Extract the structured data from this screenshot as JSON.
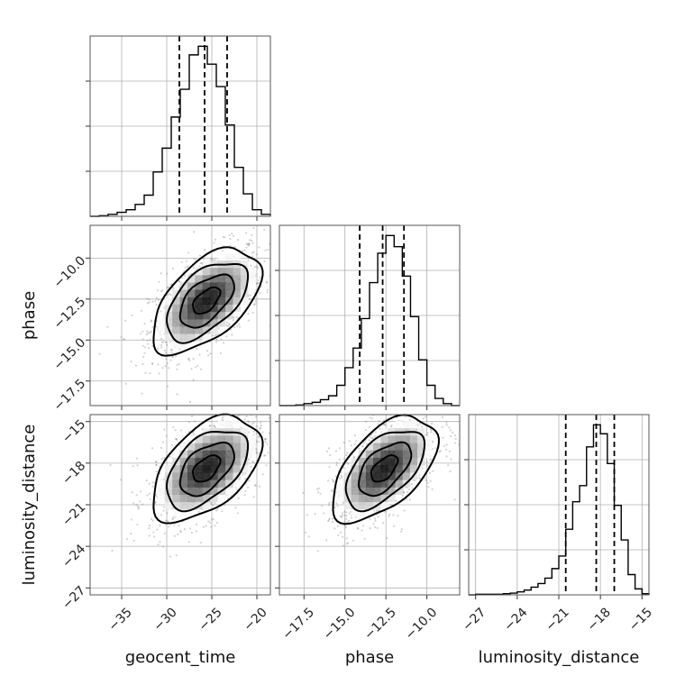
{
  "chart_data": {
    "type": "corner",
    "parameters": [
      "geocent_time",
      "phase",
      "luminosity_distance"
    ],
    "axes": {
      "geocent_time": {
        "range": [
          -38.5,
          -18.5
        ],
        "ticks": [
          -35,
          -30,
          -25,
          -20
        ],
        "tick_labels": [
          "−35",
          "−30",
          "−25",
          "−20"
        ]
      },
      "phase": {
        "range": [
          -19.0,
          -8.0
        ],
        "ticks": [
          -17.5,
          -15.0,
          -12.5,
          -10.0
        ],
        "tick_labels": [
          "−17.5",
          "−15.0",
          "−12.5",
          "−10.0"
        ]
      },
      "luminosity_distance": {
        "range": [
          -27.5,
          -14.5
        ],
        "ticks": [
          -27,
          -24,
          -21,
          -18,
          -15
        ],
        "tick_labels": [
          "−27",
          "−24",
          "−21",
          "−18",
          "−15"
        ]
      }
    },
    "histograms": [
      {
        "parameter": "geocent_time",
        "bin_edges": [
          -38.5,
          -37.5,
          -36.5,
          -35.5,
          -34.5,
          -33.5,
          -32.5,
          -31.5,
          -30.5,
          -29.5,
          -28.5,
          -27.5,
          -26.5,
          -25.5,
          -24.5,
          -23.5,
          -22.5,
          -21.5,
          -20.5,
          -19.5,
          -18.5
        ],
        "counts": [
          0,
          1,
          3,
          6,
          10,
          18,
          32,
          67,
          103,
          150,
          192,
          244,
          257,
          230,
          196,
          138,
          74,
          34,
          10,
          3
        ],
        "quantiles": [
          -28.6,
          -25.8,
          -23.3
        ]
      },
      {
        "parameter": "phase",
        "bin_edges": [
          -19.0,
          -18.5,
          -18.0,
          -17.5,
          -17.0,
          -16.5,
          -16.0,
          -15.5,
          -15.0,
          -14.5,
          -14.0,
          -13.5,
          -13.0,
          -12.5,
          -12.0,
          -11.5,
          -11.0,
          -10.5,
          -10.0,
          -9.5,
          -9.0,
          -8.5,
          -8.0
        ],
        "counts": [
          0,
          0,
          1,
          3,
          5,
          9,
          15,
          31,
          58,
          88,
          133,
          188,
          233,
          260,
          243,
          198,
          136,
          70,
          31,
          11,
          3,
          0
        ],
        "quantiles": [
          -14.1,
          -12.7,
          -11.4
        ]
      },
      {
        "parameter": "luminosity_distance",
        "bin_edges": [
          -27.5,
          -27.0,
          -26.5,
          -26.0,
          -25.5,
          -25.0,
          -24.5,
          -24.0,
          -23.5,
          -23.0,
          -22.5,
          -22.0,
          -21.5,
          -21.0,
          -20.5,
          -20.0,
          -19.5,
          -19.0,
          -18.5,
          -18.0,
          -17.5,
          -17.0,
          -16.5,
          -16.0,
          -15.5,
          -15.0,
          -14.5
        ],
        "counts": [
          0,
          1,
          1,
          1,
          1,
          2,
          3,
          5,
          8,
          13,
          19,
          28,
          44,
          65,
          110,
          156,
          183,
          248,
          285,
          270,
          220,
          150,
          92,
          34,
          10,
          2
        ],
        "quantiles": [
          -20.5,
          -18.3,
          -17.0
        ]
      }
    ],
    "joint": [
      {
        "x": "geocent_time",
        "y": "phase",
        "mean": [
          -25.6,
          -12.6
        ],
        "sd": [
          3.0,
          1.6
        ],
        "corr": 0.55
      },
      {
        "x": "geocent_time",
        "y": "luminosity_distance",
        "mean": [
          -25.6,
          -18.4
        ],
        "sd": [
          3.0,
          1.9
        ],
        "corr": 0.5
      },
      {
        "x": "phase",
        "y": "luminosity_distance",
        "mean": [
          -12.6,
          -18.4
        ],
        "sd": [
          1.6,
          1.9
        ],
        "corr": 0.55
      }
    ],
    "contour_levels_sigma": [
      0.5,
      1.0,
      1.5,
      2.0
    ],
    "grid": true,
    "xlabels": [
      "geocent_time",
      "phase",
      "luminosity_distance"
    ],
    "ylabels": [
      "",
      "phase",
      "luminosity_distance"
    ]
  }
}
